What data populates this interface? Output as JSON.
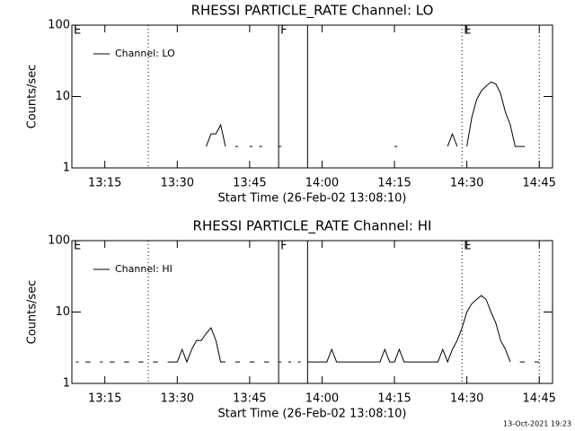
{
  "chart_data": [
    {
      "type": "line",
      "title": "RHESSI PARTICLE_RATE Channel: LO",
      "x_label": "Start Time (26-Feb-02 13:08:10)",
      "y_label": "Counts/sec",
      "log_y": true,
      "legend": "upper-left",
      "xlim": [
        "13:08:10",
        "14:47:45"
      ],
      "ylim": [
        1,
        100
      ],
      "yticks": [
        1,
        10,
        100
      ],
      "xticks": [
        "13:15",
        "13:30",
        "13:45",
        "14:00",
        "14:15",
        "14:30",
        "14:45"
      ],
      "x": [
        "13:36",
        "13:37",
        "13:38",
        "13:39",
        "13:40",
        "13:41",
        "13:42",
        "13:43",
        "13:45",
        "13:46",
        "13:47",
        "13:48",
        "13:51",
        "13:52",
        "14:15",
        "14:16",
        "14:26",
        "14:27",
        "14:28",
        "14:29",
        "14:30",
        "14:31",
        "14:32",
        "14:33",
        "14:34",
        "14:35",
        "14:36",
        "14:37",
        "14:38",
        "14:39",
        "14:40",
        "14:41",
        "14:42"
      ],
      "series": [
        {
          "name": "Channel: LO",
          "color": "#000000",
          "values": [
            2,
            3,
            3,
            4,
            2,
            null,
            2,
            null,
            2,
            null,
            2,
            null,
            2,
            null,
            2,
            null,
            2,
            3,
            2,
            null,
            2,
            5,
            9,
            12,
            14,
            16,
            15,
            11,
            6,
            4,
            2,
            2,
            2
          ]
        }
      ],
      "annotations": [
        {
          "text": "E",
          "x": "13:08:10"
        },
        {
          "text": "F",
          "x": "13:51"
        },
        {
          "text": "E",
          "x": "14:29"
        }
      ],
      "flag_lines": [
        {
          "x": "13:24",
          "style": "dotted"
        },
        {
          "x": "13:51",
          "style": "solid"
        },
        {
          "x": "13:57",
          "style": "solid"
        },
        {
          "x": "14:29",
          "style": "dotted"
        },
        {
          "x": "14:45",
          "style": "dotted"
        }
      ]
    },
    {
      "type": "line",
      "title": "RHESSI PARTICLE_RATE Channel: HI",
      "x_label": "Start Time (26-Feb-02 13:08:10)",
      "y_label": "Counts/sec",
      "log_y": true,
      "legend": "upper-left",
      "xlim": [
        "13:08:10",
        "14:47:45"
      ],
      "ylim": [
        1,
        100
      ],
      "yticks": [
        1,
        10,
        100
      ],
      "xticks": [
        "13:15",
        "13:30",
        "13:45",
        "14:00",
        "14:15",
        "14:30",
        "14:45"
      ],
      "x": [
        "13:09",
        "13:10",
        "13:11",
        "13:12",
        "13:13",
        "13:14",
        "13:15",
        "13:16",
        "13:17",
        "13:18",
        "13:19",
        "13:20",
        "13:21",
        "13:22",
        "13:23",
        "13:24",
        "13:25",
        "13:26",
        "13:27",
        "13:28",
        "13:29",
        "13:30",
        "13:31",
        "13:32",
        "13:33",
        "13:34",
        "13:35",
        "13:36",
        "13:37",
        "13:38",
        "13:39",
        "13:40",
        "13:41",
        "13:42",
        "13:43",
        "13:44",
        "13:45",
        "13:46",
        "13:47",
        "13:48",
        "13:49",
        "13:50",
        "13:51",
        "13:52",
        "13:53",
        "13:54",
        "13:55",
        "13:56",
        "13:57",
        "13:58",
        "13:59",
        "14:00",
        "14:01",
        "14:02",
        "14:03",
        "14:04",
        "14:05",
        "14:06",
        "14:07",
        "14:08",
        "14:09",
        "14:10",
        "14:11",
        "14:12",
        "14:13",
        "14:14",
        "14:15",
        "14:16",
        "14:17",
        "14:18",
        "14:19",
        "14:20",
        "14:21",
        "14:22",
        "14:23",
        "14:24",
        "14:25",
        "14:26",
        "14:27",
        "14:28",
        "14:29",
        "14:30",
        "14:31",
        "14:32",
        "14:33",
        "14:34",
        "14:35",
        "14:36",
        "14:37",
        "14:38",
        "14:39",
        "14:40",
        "14:41",
        "14:42",
        "14:43",
        "14:44",
        "14:45"
      ],
      "series": [
        {
          "name": "Channel: HI",
          "color": "#000000",
          "values": [
            2,
            null,
            2,
            2,
            null,
            2,
            null,
            2,
            2,
            null,
            2,
            2,
            null,
            2,
            2,
            null,
            2,
            2,
            null,
            2,
            2,
            2,
            3,
            2,
            3,
            4,
            4,
            5,
            6,
            4,
            2,
            2,
            null,
            2,
            2,
            null,
            2,
            2,
            null,
            2,
            2,
            null,
            2,
            null,
            2,
            null,
            2,
            null,
            2,
            2,
            2,
            2,
            2,
            3,
            2,
            2,
            2,
            2,
            2,
            2,
            2,
            2,
            2,
            2,
            3,
            2,
            2,
            3,
            2,
            2,
            2,
            2,
            2,
            2,
            2,
            2,
            3,
            2,
            3,
            4,
            6,
            10,
            13,
            15,
            17,
            15,
            10,
            7,
            4,
            3,
            2,
            null,
            2,
            2,
            null,
            2,
            2
          ]
        }
      ],
      "annotations": [
        {
          "text": "E",
          "x": "13:08:10"
        },
        {
          "text": "F",
          "x": "13:51"
        },
        {
          "text": "E",
          "x": "14:29"
        }
      ],
      "flag_lines": [
        {
          "x": "13:24",
          "style": "dotted"
        },
        {
          "x": "13:51",
          "style": "solid"
        },
        {
          "x": "13:57",
          "style": "solid"
        },
        {
          "x": "14:29",
          "style": "dotted"
        },
        {
          "x": "14:45",
          "style": "dotted"
        }
      ]
    }
  ],
  "footer": "13-Oct-2021 19:23"
}
